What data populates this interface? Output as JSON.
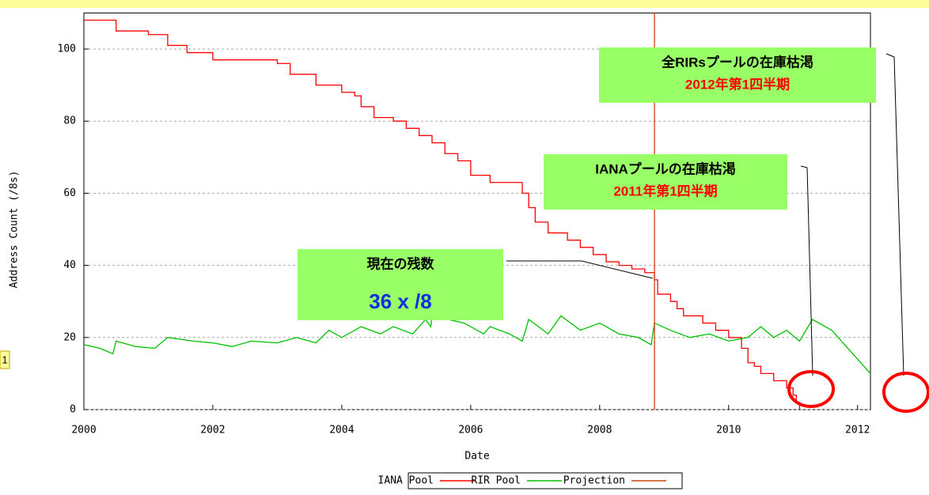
{
  "chart_data": {
    "type": "line",
    "ylabel": "Address Count (/8s)",
    "xlabel": "Date",
    "xlim": [
      2000,
      2012.2
    ],
    "xticks": [
      2000,
      2002,
      2004,
      2006,
      2008,
      2010,
      2012
    ],
    "ylim": [
      0,
      110
    ],
    "yticks": [
      0,
      20,
      40,
      60,
      80,
      100
    ],
    "grid": true,
    "legend": "bottom",
    "slide_number": "1",
    "series": [
      {
        "name": "IANA Pool",
        "color": "#ff0000",
        "step": true,
        "x": [
          2000,
          2000.5,
          2001,
          2001.3,
          2001.6,
          2002,
          2003,
          2003.2,
          2003.6,
          2004,
          2004.2,
          2004.3,
          2004.5,
          2004.8,
          2005,
          2005.2,
          2005.4,
          2005.6,
          2005.8,
          2006,
          2006.3,
          2006.8,
          2006.9,
          2007,
          2007.2,
          2007.5,
          2007.7,
          2007.9,
          2008.1,
          2008.3,
          2008.5,
          2008.7,
          2008.85,
          2008.9,
          2009.1,
          2009.2,
          2009.3,
          2009.6,
          2009.8,
          2010,
          2010.2,
          2010.3,
          2010.4,
          2010.5,
          2010.7,
          2010.9,
          2011,
          2011.05,
          2011.1
        ],
        "values": [
          108,
          105,
          104,
          101,
          99,
          97,
          96,
          93,
          90,
          88,
          87,
          84,
          81,
          80,
          78,
          76,
          74,
          71,
          69,
          65,
          63,
          60,
          56,
          52,
          49,
          47,
          45,
          43,
          41,
          40,
          39,
          38,
          36,
          32,
          30,
          28,
          26,
          24,
          22,
          20,
          17,
          13,
          12,
          10,
          8,
          6,
          4,
          2,
          0
        ]
      },
      {
        "name": "RIR Pool",
        "color": "#00c000",
        "x": [
          2000,
          2000.25,
          2000.45,
          2000.5,
          2000.8,
          2001.1,
          2001.3,
          2001.7,
          2002,
          2002.3,
          2002.6,
          2003,
          2003.3,
          2003.6,
          2003.8,
          2004,
          2004.3,
          2004.6,
          2004.8,
          2005.1,
          2005.3,
          2005.38,
          2005.4,
          2005.9,
          2006.2,
          2006.3,
          2006.6,
          2006.8,
          2006.9,
          2007.2,
          2007.4,
          2007.7,
          2008,
          2008.3,
          2008.6,
          2008.8,
          2008.85,
          2009.1,
          2009.4,
          2009.7,
          2010,
          2010.3,
          2010.5,
          2010.7,
          2010.9,
          2011.1,
          2011.3,
          2011.6,
          2012,
          2012.2
        ],
        "values": [
          18,
          17,
          15.5,
          19,
          17.5,
          17,
          20,
          19,
          18.5,
          17.5,
          19,
          18.5,
          20,
          18.5,
          22,
          20,
          23,
          21,
          23,
          21,
          25,
          23,
          26,
          24,
          21,
          23,
          21,
          19,
          25,
          21,
          26,
          22,
          24,
          21,
          20,
          18,
          24,
          22,
          20,
          21,
          19,
          20,
          23,
          20,
          22,
          19,
          25,
          22,
          14,
          10
        ]
      },
      {
        "name": "Projection",
        "color": "#d04010",
        "x": [
          2008.85,
          2008.85
        ],
        "values": [
          0,
          110
        ]
      }
    ],
    "annotations": [
      {
        "lines": [
          "現在の残数",
          "36 x /8"
        ]
      },
      {
        "lines": [
          "IANAプールの在庫枯渇",
          "2011年第1四半期"
        ]
      },
      {
        "lines": [
          "全RIRsプールの在庫枯渇",
          "2012年第1四半期"
        ]
      }
    ]
  }
}
